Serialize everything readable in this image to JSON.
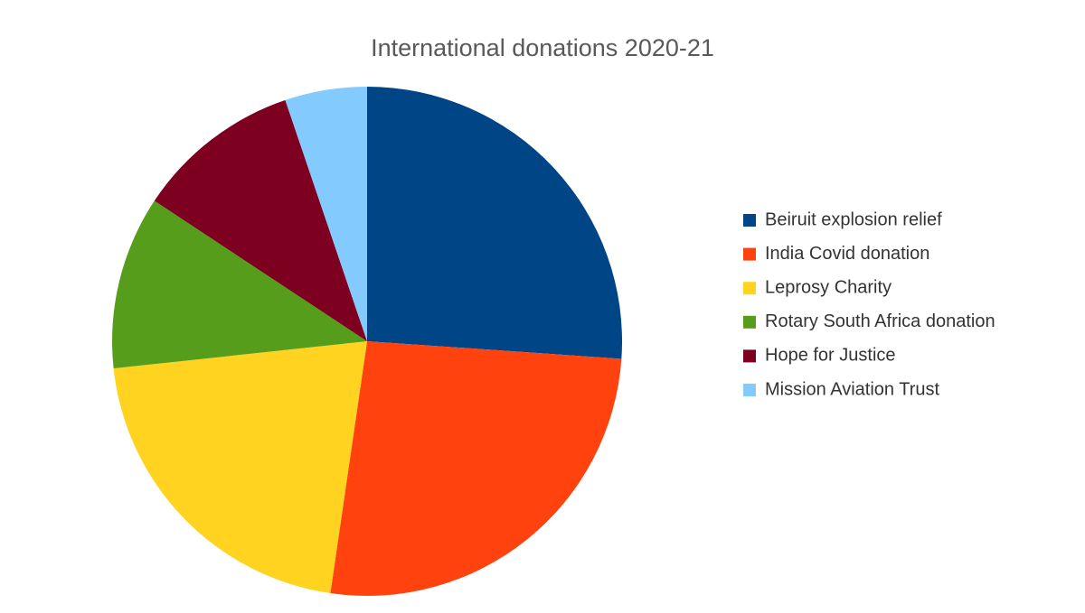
{
  "chart_data": {
    "type": "pie",
    "title": "International donations 2020-21",
    "categories": [
      "Beiruit explosion relief",
      "India Covid donation",
      "Leprosy Charity",
      "Rotary South Africa donation",
      "Hope for Justice",
      "Mission Aviation Trust"
    ],
    "values": [
      26.1,
      26.2,
      21,
      11,
      10.5,
      5.2
    ],
    "colors": [
      "#004586",
      "#ff420e",
      "#ffd320",
      "#579d1c",
      "#7e0021",
      "#83caff"
    ],
    "legend": "right"
  }
}
